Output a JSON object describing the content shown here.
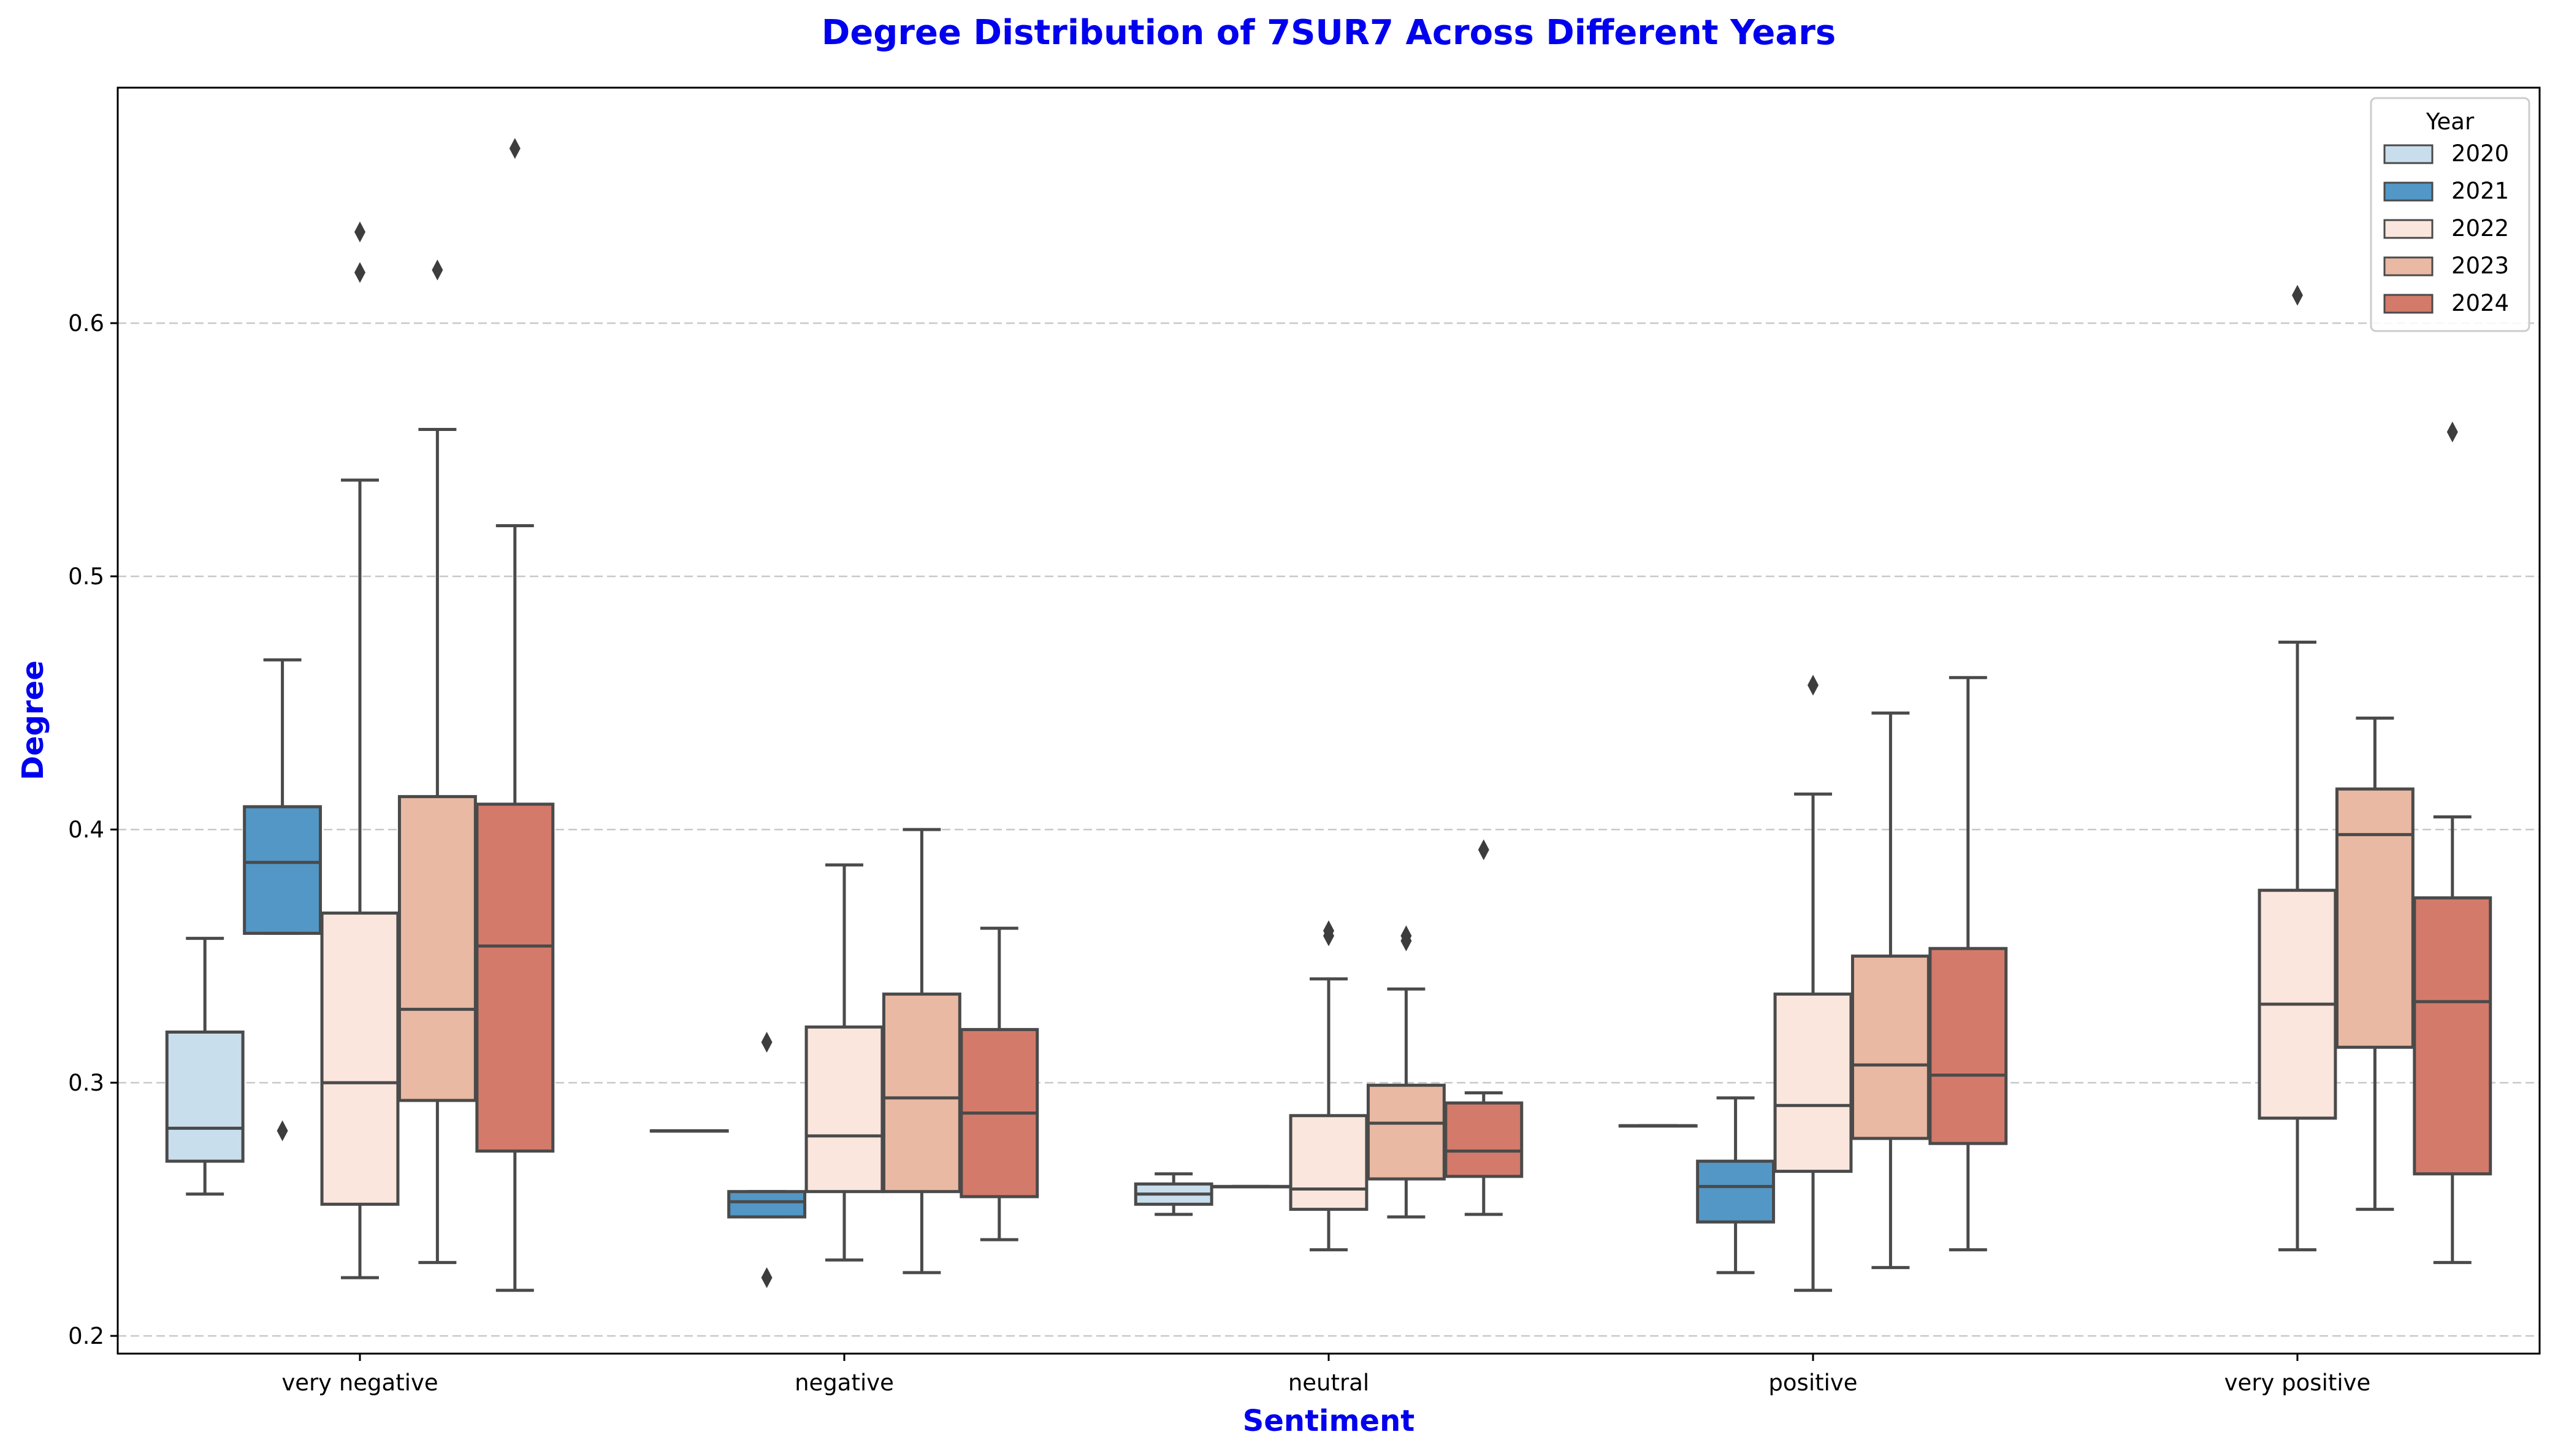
{
  "chart_data": {
    "type": "box",
    "title": "Degree Distribution of 7SUR7 Across Different Years",
    "xlabel": "Sentiment",
    "ylabel": "Degree",
    "categories": [
      "very negative",
      "negative",
      "neutral",
      "positive",
      "very positive"
    ],
    "ylim": [
      0.193,
      0.693
    ],
    "yticks": [
      0.2,
      0.3,
      0.4,
      0.5,
      0.6
    ],
    "ytick_labels": [
      "0.2",
      "0.3",
      "0.4",
      "0.5",
      "0.6"
    ],
    "grid": "y-dashed",
    "legend": {
      "title": "Year",
      "placement": "top-right"
    },
    "label_color": "#0000ee",
    "series": [
      {
        "name": "2020",
        "color": "#c9deec",
        "boxes": [
          {
            "whislo": 0.256,
            "q1": 0.269,
            "med": 0.282,
            "q3": 0.32,
            "whishi": 0.357,
            "fliers": []
          },
          {
            "whislo": 0.281,
            "q1": 0.281,
            "med": 0.281,
            "q3": 0.281,
            "whishi": 0.281,
            "fliers": []
          },
          {
            "whislo": 0.248,
            "q1": 0.252,
            "med": 0.256,
            "q3": 0.26,
            "whishi": 0.264,
            "fliers": []
          },
          {
            "whislo": 0.283,
            "q1": 0.283,
            "med": 0.283,
            "q3": 0.283,
            "whishi": 0.283,
            "fliers": []
          },
          null
        ]
      },
      {
        "name": "2021",
        "color": "#5297c6",
        "boxes": [
          {
            "whislo": 0.359,
            "q1": 0.359,
            "med": 0.387,
            "q3": 0.409,
            "whishi": 0.467,
            "fliers": [
              0.281
            ]
          },
          {
            "whislo": 0.247,
            "q1": 0.247,
            "med": 0.253,
            "q3": 0.257,
            "whishi": 0.257,
            "fliers": [
              0.223,
              0.316
            ]
          },
          {
            "whislo": 0.259,
            "q1": 0.259,
            "med": 0.259,
            "q3": 0.259,
            "whishi": 0.259,
            "fliers": []
          },
          {
            "whislo": 0.225,
            "q1": 0.245,
            "med": 0.259,
            "q3": 0.269,
            "whishi": 0.294,
            "fliers": []
          },
          null
        ]
      },
      {
        "name": "2022",
        "color": "#fbe6de",
        "boxes": [
          {
            "whislo": 0.223,
            "q1": 0.252,
            "med": 0.3,
            "q3": 0.367,
            "whishi": 0.538,
            "fliers": [
              0.62,
              0.636
            ]
          },
          {
            "whislo": 0.23,
            "q1": 0.257,
            "med": 0.279,
            "q3": 0.322,
            "whishi": 0.386,
            "fliers": []
          },
          {
            "whislo": 0.234,
            "q1": 0.25,
            "med": 0.258,
            "q3": 0.287,
            "whishi": 0.341,
            "fliers": [
              0.358,
              0.36
            ]
          },
          {
            "whislo": 0.218,
            "q1": 0.265,
            "med": 0.291,
            "q3": 0.335,
            "whishi": 0.414,
            "fliers": [
              0.457
            ]
          },
          {
            "whislo": 0.234,
            "q1": 0.286,
            "med": 0.331,
            "q3": 0.376,
            "whishi": 0.474,
            "fliers": [
              0.611
            ]
          }
        ]
      },
      {
        "name": "2023",
        "color": "#e9b9a3",
        "boxes": [
          {
            "whislo": 0.229,
            "q1": 0.293,
            "med": 0.329,
            "q3": 0.413,
            "whishi": 0.558,
            "fliers": [
              0.621
            ]
          },
          {
            "whislo": 0.225,
            "q1": 0.257,
            "med": 0.294,
            "q3": 0.335,
            "whishi": 0.4,
            "fliers": []
          },
          {
            "whislo": 0.247,
            "q1": 0.262,
            "med": 0.284,
            "q3": 0.299,
            "whishi": 0.337,
            "fliers": [
              0.356,
              0.358
            ]
          },
          {
            "whislo": 0.227,
            "q1": 0.278,
            "med": 0.307,
            "q3": 0.35,
            "whishi": 0.446,
            "fliers": []
          },
          {
            "whislo": 0.25,
            "q1": 0.314,
            "med": 0.398,
            "q3": 0.416,
            "whishi": 0.444,
            "fliers": []
          }
        ]
      },
      {
        "name": "2024",
        "color": "#d47a6a",
        "boxes": [
          {
            "whislo": 0.218,
            "q1": 0.273,
            "med": 0.354,
            "q3": 0.41,
            "whishi": 0.52,
            "fliers": [
              0.669
            ]
          },
          {
            "whislo": 0.238,
            "q1": 0.255,
            "med": 0.288,
            "q3": 0.321,
            "whishi": 0.361,
            "fliers": []
          },
          {
            "whislo": 0.248,
            "q1": 0.263,
            "med": 0.273,
            "q3": 0.292,
            "whishi": 0.296,
            "fliers": [
              0.392
            ]
          },
          {
            "whislo": 0.234,
            "q1": 0.276,
            "med": 0.303,
            "q3": 0.353,
            "whishi": 0.46,
            "fliers": []
          },
          {
            "whislo": 0.229,
            "q1": 0.264,
            "med": 0.332,
            "q3": 0.373,
            "whishi": 0.405,
            "fliers": [
              0.557
            ]
          }
        ]
      }
    ]
  }
}
